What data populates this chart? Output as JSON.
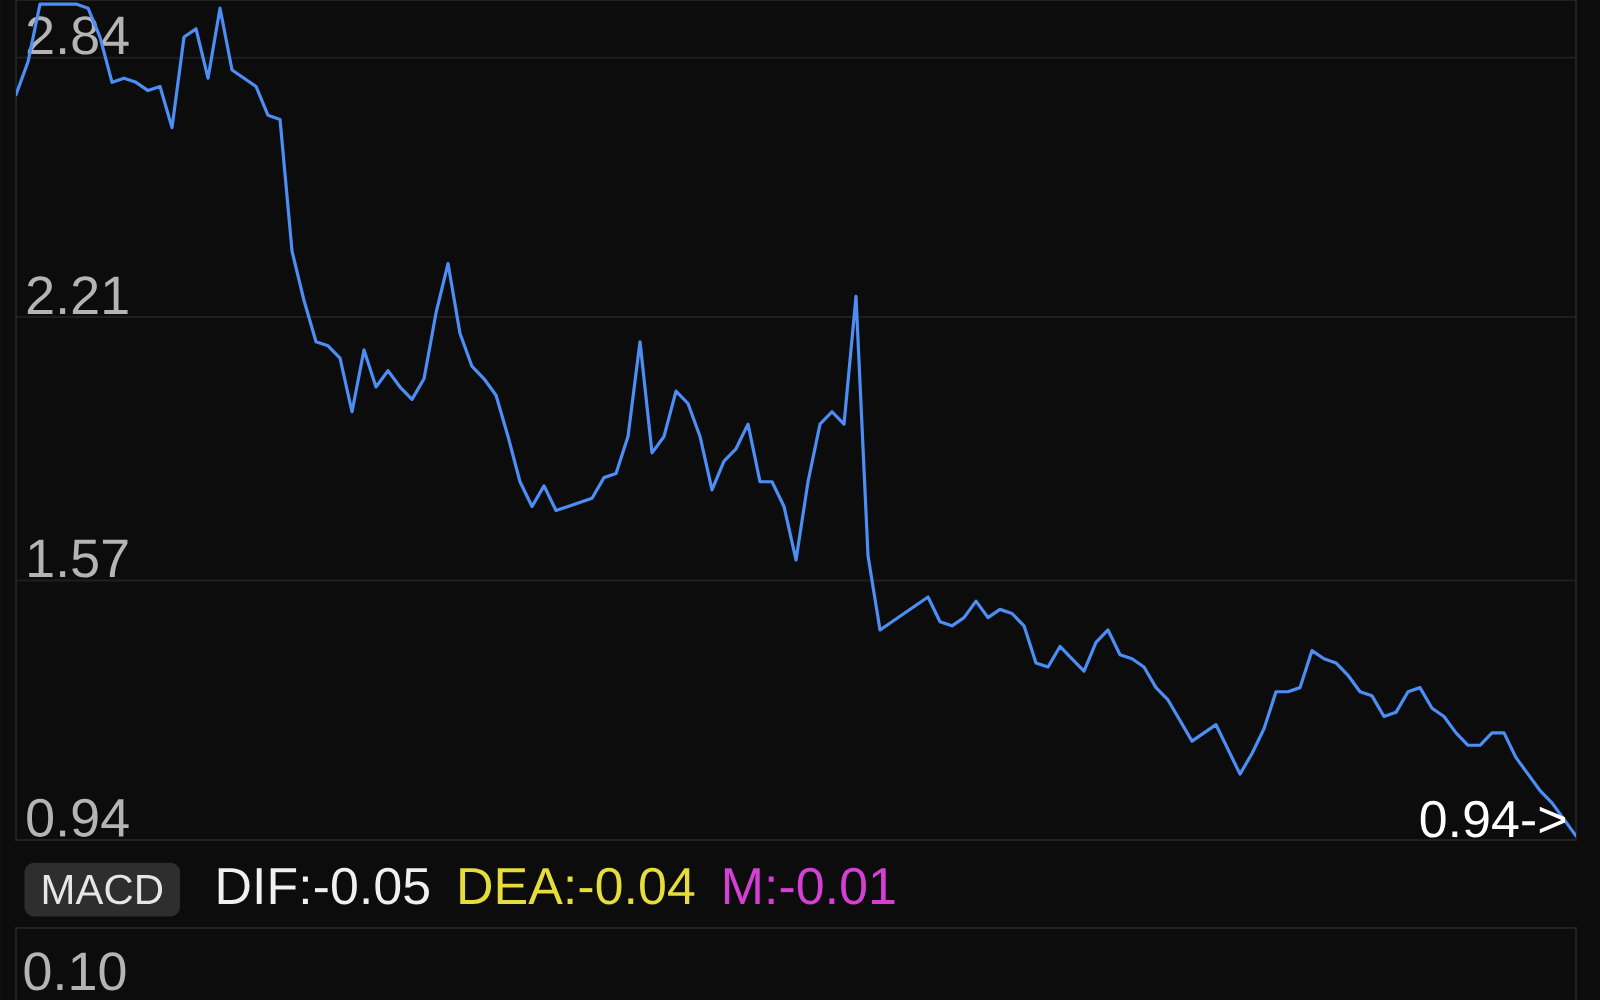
{
  "chart_data": [
    {
      "type": "line",
      "categories": [
        null,
        null,
        null,
        null,
        null,
        null,
        null,
        null,
        null,
        null,
        null,
        null,
        null,
        null,
        null,
        null,
        null,
        null,
        null,
        null,
        null,
        null,
        null,
        null,
        null,
        null,
        null,
        null,
        null,
        null,
        null,
        null,
        null,
        null,
        null,
        null,
        null,
        null,
        null,
        null,
        null,
        null,
        null,
        null,
        null,
        null,
        null,
        null,
        null,
        null,
        null,
        null,
        null,
        null,
        null,
        null,
        null,
        null,
        null,
        null,
        null,
        null,
        null,
        null,
        null,
        null,
        null,
        null,
        null,
        null,
        null,
        null,
        null,
        null,
        null,
        null,
        null,
        null,
        null,
        null,
        null,
        null,
        null,
        null,
        null,
        null,
        null,
        null,
        null,
        null,
        null,
        null,
        null,
        null,
        null,
        null,
        null,
        null,
        null,
        null,
        null,
        null,
        null,
        null,
        null,
        null,
        null,
        null,
        null,
        null,
        null,
        null,
        null,
        null,
        null,
        null,
        null,
        null,
        null,
        null,
        null,
        null,
        null,
        null,
        null,
        null,
        null,
        null,
        null,
        null,
        null
      ],
      "series": [
        {
          "color": "#4c8ef5",
          "values": [
            2.75,
            2.83,
            2.97,
            2.97,
            2.97,
            2.97,
            2.96,
            2.89,
            2.78,
            2.79,
            2.78,
            2.76,
            2.77,
            2.67,
            2.89,
            2.91,
            2.79,
            2.96,
            2.81,
            2.79,
            2.77,
            2.7,
            2.69,
            2.37,
            2.25,
            2.15,
            2.14,
            2.11,
            1.98,
            2.13,
            2.04,
            2.08,
            2.04,
            2.01,
            2.06,
            2.22,
            2.34,
            2.17,
            2.09,
            2.06,
            2.02,
            1.92,
            1.81,
            1.75,
            1.8,
            1.74,
            1.75,
            1.76,
            1.77,
            1.82,
            1.83,
            1.92,
            2.15,
            1.88,
            1.92,
            2.03,
            2.0,
            1.92,
            1.79,
            1.86,
            1.89,
            1.95,
            1.81,
            1.81,
            1.75,
            1.62,
            1.81,
            1.95,
            1.98,
            1.95,
            2.26,
            1.63,
            1.45,
            1.47,
            1.49,
            1.51,
            1.53,
            1.47,
            1.46,
            1.48,
            1.52,
            1.48,
            1.5,
            1.49,
            1.46,
            1.37,
            1.36,
            1.41,
            1.38,
            1.35,
            1.42,
            1.45,
            1.39,
            1.38,
            1.36,
            1.31,
            1.28,
            1.23,
            1.18,
            1.2,
            1.22,
            1.16,
            1.1,
            1.15,
            1.21,
            1.3,
            1.3,
            1.31,
            1.4,
            1.38,
            1.37,
            1.34,
            1.3,
            1.29,
            1.24,
            1.25,
            1.3,
            1.31,
            1.26,
            1.24,
            1.2,
            1.17,
            1.17,
            1.2,
            1.2,
            1.14,
            1.1,
            1.06,
            1.03,
            0.99,
            0.95
          ]
        }
      ],
      "ylim": [
        0.94,
        2.98
      ],
      "yticks": [
        0.94,
        1.57,
        2.21,
        2.84
      ],
      "grid": "y",
      "tick_labels": "y",
      "line_style": "solid",
      "annotations": [
        "0.94->"
      ]
    },
    {
      "type": "other",
      "title": "MACD",
      "annotations": [
        "DIF:-0.05",
        "DEA:-0.04",
        "M:-0.01",
        "0.10"
      ],
      "colors": [
        "#f0f0f0",
        "#e6dc3c",
        "#d63fd6",
        "#b4b4b4"
      ]
    }
  ]
}
